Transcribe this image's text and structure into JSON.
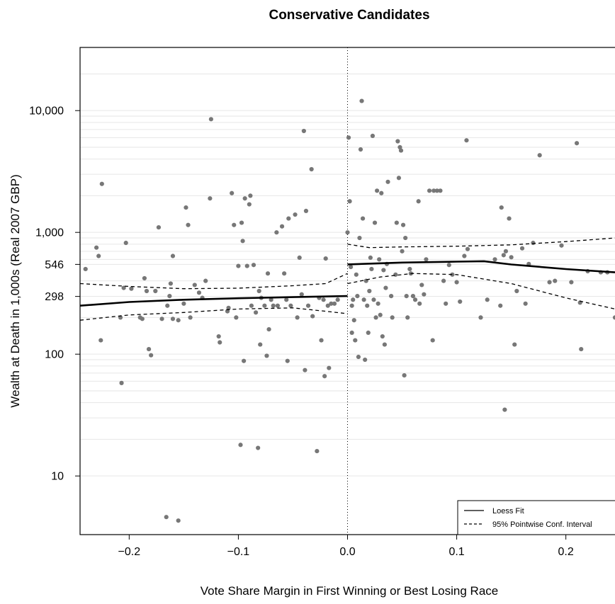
{
  "chart_data": {
    "type": "scatter",
    "title": "Conservative Candidates",
    "xlabel": "Vote Share Margin in First Winning or Best Losing Race",
    "ylabel": "Wealth at Death in 1,000s (Real 2007 GBP)",
    "y_scale": "log",
    "xlim": [
      -0.245,
      0.245
    ],
    "ylim": [
      3.3,
      33000
    ],
    "x_ticks": [
      {
        "value": -0.2,
        "label": "−0.2"
      },
      {
        "value": -0.1,
        "label": "−0.1"
      },
      {
        "value": 0.0,
        "label": "0.0"
      },
      {
        "value": 0.1,
        "label": "0.1"
      },
      {
        "value": 0.2,
        "label": "0.2"
      }
    ],
    "y_ticks": [
      {
        "value": 10,
        "label": "10"
      },
      {
        "value": 100,
        "label": "100"
      },
      {
        "value": 298,
        "label": "298"
      },
      {
        "value": 546,
        "label": "546"
      },
      {
        "value": 1000,
        "label": "1,000"
      },
      {
        "value": 10000,
        "label": "10,000"
      }
    ],
    "gridlines": [
      20,
      30,
      40,
      50,
      60,
      70,
      80,
      90,
      200,
      400,
      600,
      700,
      800,
      900,
      2000,
      3000,
      4000,
      5000,
      6000,
      7000,
      8000,
      9000,
      20000
    ],
    "cutoff_x": 0.0,
    "point_color": "#777777",
    "points": [
      [
        -0.24,
        500
      ],
      [
        -0.225,
        2500
      ],
      [
        -0.23,
        750
      ],
      [
        -0.228,
        640
      ],
      [
        -0.226,
        130
      ],
      [
        -0.208,
        200
      ],
      [
        -0.207,
        58
      ],
      [
        -0.205,
        350
      ],
      [
        -0.203,
        820
      ],
      [
        -0.198,
        345
      ],
      [
        -0.19,
        200
      ],
      [
        -0.188,
        195
      ],
      [
        -0.186,
        420
      ],
      [
        -0.184,
        330
      ],
      [
        -0.182,
        110
      ],
      [
        -0.18,
        98
      ],
      [
        -0.176,
        330
      ],
      [
        -0.173,
        1100
      ],
      [
        -0.17,
        195
      ],
      [
        -0.166,
        4.6
      ],
      [
        -0.165,
        250
      ],
      [
        -0.163,
        300
      ],
      [
        -0.162,
        380
      ],
      [
        -0.16,
        640
      ],
      [
        -0.16,
        195
      ],
      [
        -0.155,
        4.3
      ],
      [
        -0.155,
        190
      ],
      [
        -0.15,
        260
      ],
      [
        -0.148,
        1600
      ],
      [
        -0.146,
        1150
      ],
      [
        -0.144,
        200
      ],
      [
        -0.14,
        370
      ],
      [
        -0.136,
        320
      ],
      [
        -0.133,
        290
      ],
      [
        -0.13,
        400
      ],
      [
        -0.126,
        1900
      ],
      [
        -0.125,
        8500
      ],
      [
        -0.118,
        140
      ],
      [
        -0.117,
        125
      ],
      [
        -0.11,
        225
      ],
      [
        -0.109,
        240
      ],
      [
        -0.106,
        2100
      ],
      [
        -0.104,
        1150
      ],
      [
        -0.102,
        200
      ],
      [
        -0.1,
        530
      ],
      [
        -0.098,
        18
      ],
      [
        -0.097,
        1200
      ],
      [
        -0.096,
        850
      ],
      [
        -0.095,
        88
      ],
      [
        -0.094,
        1900
      ],
      [
        -0.092,
        530
      ],
      [
        -0.09,
        1700
      ],
      [
        -0.089,
        2000
      ],
      [
        -0.088,
        250
      ],
      [
        -0.086,
        540
      ],
      [
        -0.084,
        220
      ],
      [
        -0.082,
        17
      ],
      [
        -0.081,
        330
      ],
      [
        -0.08,
        120
      ],
      [
        -0.079,
        290
      ],
      [
        -0.076,
        250
      ],
      [
        -0.074,
        97
      ],
      [
        -0.073,
        460
      ],
      [
        -0.072,
        160
      ],
      [
        -0.07,
        280
      ],
      [
        -0.068,
        250
      ],
      [
        -0.065,
        1000
      ],
      [
        -0.064,
        250
      ],
      [
        -0.06,
        1120
      ],
      [
        -0.058,
        460
      ],
      [
        -0.056,
        280
      ],
      [
        -0.055,
        88
      ],
      [
        -0.054,
        1300
      ],
      [
        -0.052,
        250
      ],
      [
        -0.048,
        1400
      ],
      [
        -0.046,
        200
      ],
      [
        -0.044,
        620
      ],
      [
        -0.042,
        310
      ],
      [
        -0.04,
        6800
      ],
      [
        -0.039,
        74
      ],
      [
        -0.038,
        1500
      ],
      [
        -0.036,
        250
      ],
      [
        -0.033,
        3300
      ],
      [
        -0.032,
        205
      ],
      [
        -0.028,
        16
      ],
      [
        -0.026,
        290
      ],
      [
        -0.024,
        130
      ],
      [
        -0.022,
        280
      ],
      [
        -0.021,
        66
      ],
      [
        -0.02,
        610
      ],
      [
        -0.018,
        250
      ],
      [
        -0.017,
        77
      ],
      [
        -0.015,
        260
      ],
      [
        -0.012,
        260
      ],
      [
        -0.009,
        280
      ],
      [
        0.0,
        1000
      ],
      [
        0.001,
        6000
      ],
      [
        0.002,
        1800
      ],
      [
        0.003,
        520
      ],
      [
        0.004,
        250
      ],
      [
        0.004,
        150
      ],
      [
        0.005,
        280
      ],
      [
        0.006,
        190
      ],
      [
        0.007,
        130
      ],
      [
        0.008,
        450
      ],
      [
        0.009,
        300
      ],
      [
        0.01,
        95
      ],
      [
        0.011,
        900
      ],
      [
        0.012,
        4800
      ],
      [
        0.013,
        12000
      ],
      [
        0.014,
        1300
      ],
      [
        0.015,
        280
      ],
      [
        0.016,
        90
      ],
      [
        0.017,
        400
      ],
      [
        0.018,
        250
      ],
      [
        0.019,
        150
      ],
      [
        0.02,
        330
      ],
      [
        0.021,
        620
      ],
      [
        0.022,
        500
      ],
      [
        0.023,
        6200
      ],
      [
        0.024,
        280
      ],
      [
        0.025,
        1200
      ],
      [
        0.026,
        200
      ],
      [
        0.027,
        2200
      ],
      [
        0.028,
        260
      ],
      [
        0.029,
        600
      ],
      [
        0.03,
        210
      ],
      [
        0.031,
        2100
      ],
      [
        0.032,
        140
      ],
      [
        0.033,
        490
      ],
      [
        0.034,
        120
      ],
      [
        0.035,
        350
      ],
      [
        0.036,
        550
      ],
      [
        0.037,
        2600
      ],
      [
        0.04,
        300
      ],
      [
        0.041,
        200
      ],
      [
        0.044,
        450
      ],
      [
        0.045,
        1200
      ],
      [
        0.046,
        5600
      ],
      [
        0.047,
        2800
      ],
      [
        0.048,
        5000
      ],
      [
        0.049,
        4700
      ],
      [
        0.05,
        700
      ],
      [
        0.051,
        1150
      ],
      [
        0.052,
        67
      ],
      [
        0.053,
        900
      ],
      [
        0.054,
        300
      ],
      [
        0.055,
        200
      ],
      [
        0.057,
        500
      ],
      [
        0.058,
        460
      ],
      [
        0.06,
        300
      ],
      [
        0.062,
        280
      ],
      [
        0.065,
        1800
      ],
      [
        0.066,
        260
      ],
      [
        0.068,
        370
      ],
      [
        0.07,
        310
      ],
      [
        0.072,
        600
      ],
      [
        0.075,
        2200
      ],
      [
        0.078,
        130
      ],
      [
        0.079,
        2200
      ],
      [
        0.082,
        2200
      ],
      [
        0.085,
        2200
      ],
      [
        0.088,
        400
      ],
      [
        0.09,
        260
      ],
      [
        0.093,
        540
      ],
      [
        0.096,
        450
      ],
      [
        0.1,
        390
      ],
      [
        0.103,
        270
      ],
      [
        0.107,
        640
      ],
      [
        0.109,
        5700
      ],
      [
        0.11,
        730
      ],
      [
        0.122,
        200
      ],
      [
        0.128,
        280
      ],
      [
        0.135,
        600
      ],
      [
        0.14,
        250
      ],
      [
        0.141,
        1600
      ],
      [
        0.143,
        650
      ],
      [
        0.144,
        35
      ],
      [
        0.145,
        700
      ],
      [
        0.148,
        1300
      ],
      [
        0.15,
        625
      ],
      [
        0.153,
        120
      ],
      [
        0.155,
        330
      ],
      [
        0.16,
        740
      ],
      [
        0.163,
        260
      ],
      [
        0.166,
        550
      ],
      [
        0.17,
        820
      ],
      [
        0.176,
        4300
      ],
      [
        0.185,
        390
      ],
      [
        0.19,
        400
      ],
      [
        0.196,
        780
      ],
      [
        0.205,
        390
      ],
      [
        0.21,
        5400
      ],
      [
        0.213,
        265
      ],
      [
        0.214,
        110
      ],
      [
        0.22,
        480
      ],
      [
        0.232,
        470
      ],
      [
        0.238,
        470
      ],
      [
        0.245,
        200
      ]
    ],
    "series": [
      {
        "name": "Loess Fit",
        "style": "solid",
        "segments": [
          [
            [
              -0.245,
              250
            ],
            [
              -0.2,
              268
            ],
            [
              -0.15,
              280
            ],
            [
              -0.1,
              288
            ],
            [
              -0.05,
              294
            ],
            [
              0.0,
              300
            ]
          ],
          [
            [
              0.0,
              546
            ],
            [
              0.05,
              565
            ],
            [
              0.1,
              575
            ],
            [
              0.125,
              580
            ],
            [
              0.15,
              545
            ],
            [
              0.2,
              500
            ],
            [
              0.245,
              470
            ]
          ]
        ]
      },
      {
        "name": "95% Pointwise Conf. Interval",
        "style": "dashed",
        "segments": [
          [
            [
              -0.245,
              380
            ],
            [
              -0.2,
              360
            ],
            [
              -0.15,
              345
            ],
            [
              -0.1,
              348
            ],
            [
              -0.05,
              365
            ],
            [
              -0.02,
              380
            ],
            [
              0.0,
              460
            ]
          ],
          [
            [
              -0.245,
              190
            ],
            [
              -0.2,
              210
            ],
            [
              -0.15,
              220
            ],
            [
              -0.1,
              235
            ],
            [
              -0.05,
              240
            ],
            [
              -0.02,
              225
            ],
            [
              0.0,
              215
            ]
          ],
          [
            [
              0.0,
              800
            ],
            [
              0.02,
              750
            ],
            [
              0.05,
              760
            ],
            [
              0.1,
              770
            ],
            [
              0.15,
              790
            ],
            [
              0.2,
              840
            ],
            [
              0.245,
              900
            ]
          ],
          [
            [
              0.0,
              380
            ],
            [
              0.03,
              430
            ],
            [
              0.06,
              460
            ],
            [
              0.1,
              450
            ],
            [
              0.15,
              380
            ],
            [
              0.2,
              290
            ],
            [
              0.245,
              235
            ]
          ]
        ]
      }
    ],
    "legend": {
      "position": "bottom-right",
      "entries": [
        {
          "label": "Loess Fit",
          "style": "solid"
        },
        {
          "label": "95% Pointwise Conf. Interval",
          "style": "dashed"
        }
      ]
    }
  }
}
